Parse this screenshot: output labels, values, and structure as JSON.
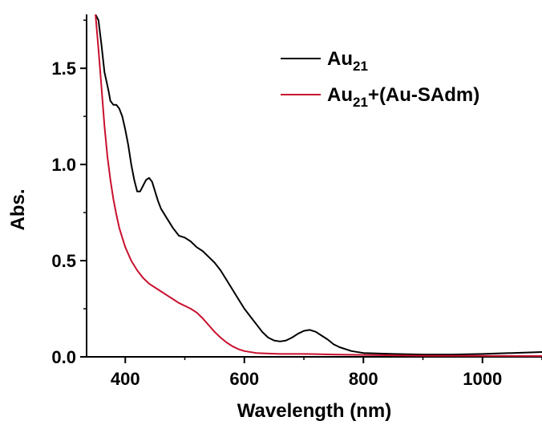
{
  "chart_data": {
    "type": "line",
    "title": "",
    "xlabel": "Wavelength (nm)",
    "ylabel": "Abs.",
    "xlim": [
      335,
      1100
    ],
    "ylim": [
      0.0,
      1.78
    ],
    "xticks": [
      {
        "value": 400,
        "label": "400"
      },
      {
        "value": 600,
        "label": "600"
      },
      {
        "value": 800,
        "label": "800"
      },
      {
        "value": 1000,
        "label": "1000"
      }
    ],
    "yticks": [
      {
        "value": 0.0,
        "label": "0.0"
      },
      {
        "value": 0.5,
        "label": "0.5"
      },
      {
        "value": 1.0,
        "label": "1.0"
      },
      {
        "value": 1.5,
        "label": "1.5"
      }
    ],
    "grid": false,
    "legend_position": "top-right",
    "series": [
      {
        "name": "Au21",
        "legend_base": "Au",
        "legend_sub": "21",
        "legend_suffix": "",
        "color": "#000000",
        "x": [
          350,
          355,
          360,
          365,
          370,
          372,
          375,
          380,
          385,
          390,
          395,
          400,
          405,
          410,
          415,
          420,
          425,
          430,
          435,
          440,
          445,
          450,
          455,
          460,
          470,
          480,
          490,
          500,
          510,
          520,
          530,
          540,
          550,
          560,
          570,
          580,
          590,
          600,
          610,
          620,
          630,
          640,
          650,
          660,
          670,
          680,
          690,
          700,
          710,
          720,
          730,
          740,
          750,
          760,
          780,
          800,
          850,
          900,
          950,
          1000,
          1050,
          1100
        ],
        "y": [
          1.78,
          1.75,
          1.62,
          1.48,
          1.41,
          1.38,
          1.33,
          1.31,
          1.31,
          1.29,
          1.25,
          1.18,
          1.1,
          1.0,
          0.92,
          0.86,
          0.86,
          0.89,
          0.92,
          0.93,
          0.91,
          0.86,
          0.81,
          0.77,
          0.72,
          0.67,
          0.63,
          0.62,
          0.6,
          0.57,
          0.55,
          0.52,
          0.49,
          0.45,
          0.4,
          0.35,
          0.3,
          0.25,
          0.21,
          0.17,
          0.13,
          0.1,
          0.085,
          0.08,
          0.085,
          0.1,
          0.12,
          0.135,
          0.14,
          0.13,
          0.11,
          0.09,
          0.065,
          0.05,
          0.03,
          0.02,
          0.015,
          0.012,
          0.012,
          0.015,
          0.02,
          0.025
        ]
      },
      {
        "name": "Au21+(Au-SAdm)",
        "legend_base": "Au",
        "legend_sub": "21",
        "legend_suffix": "+(Au-SAdm)",
        "color": "#c8102e",
        "x": [
          350,
          355,
          360,
          365,
          370,
          375,
          380,
          385,
          390,
          395,
          400,
          410,
          420,
          430,
          440,
          450,
          460,
          470,
          480,
          490,
          500,
          510,
          520,
          530,
          540,
          550,
          560,
          570,
          580,
          590,
          600,
          620,
          640,
          660,
          680,
          700,
          720,
          750,
          800,
          850,
          900,
          1000,
          1100
        ],
        "y": [
          1.78,
          1.6,
          1.4,
          1.2,
          1.04,
          0.92,
          0.82,
          0.74,
          0.67,
          0.62,
          0.57,
          0.5,
          0.45,
          0.41,
          0.38,
          0.36,
          0.34,
          0.32,
          0.3,
          0.28,
          0.265,
          0.25,
          0.23,
          0.2,
          0.165,
          0.13,
          0.1,
          0.075,
          0.055,
          0.04,
          0.03,
          0.02,
          0.017,
          0.015,
          0.015,
          0.015,
          0.014,
          0.012,
          0.01,
          0.008,
          0.006,
          0.005,
          0.004
        ]
      }
    ]
  }
}
